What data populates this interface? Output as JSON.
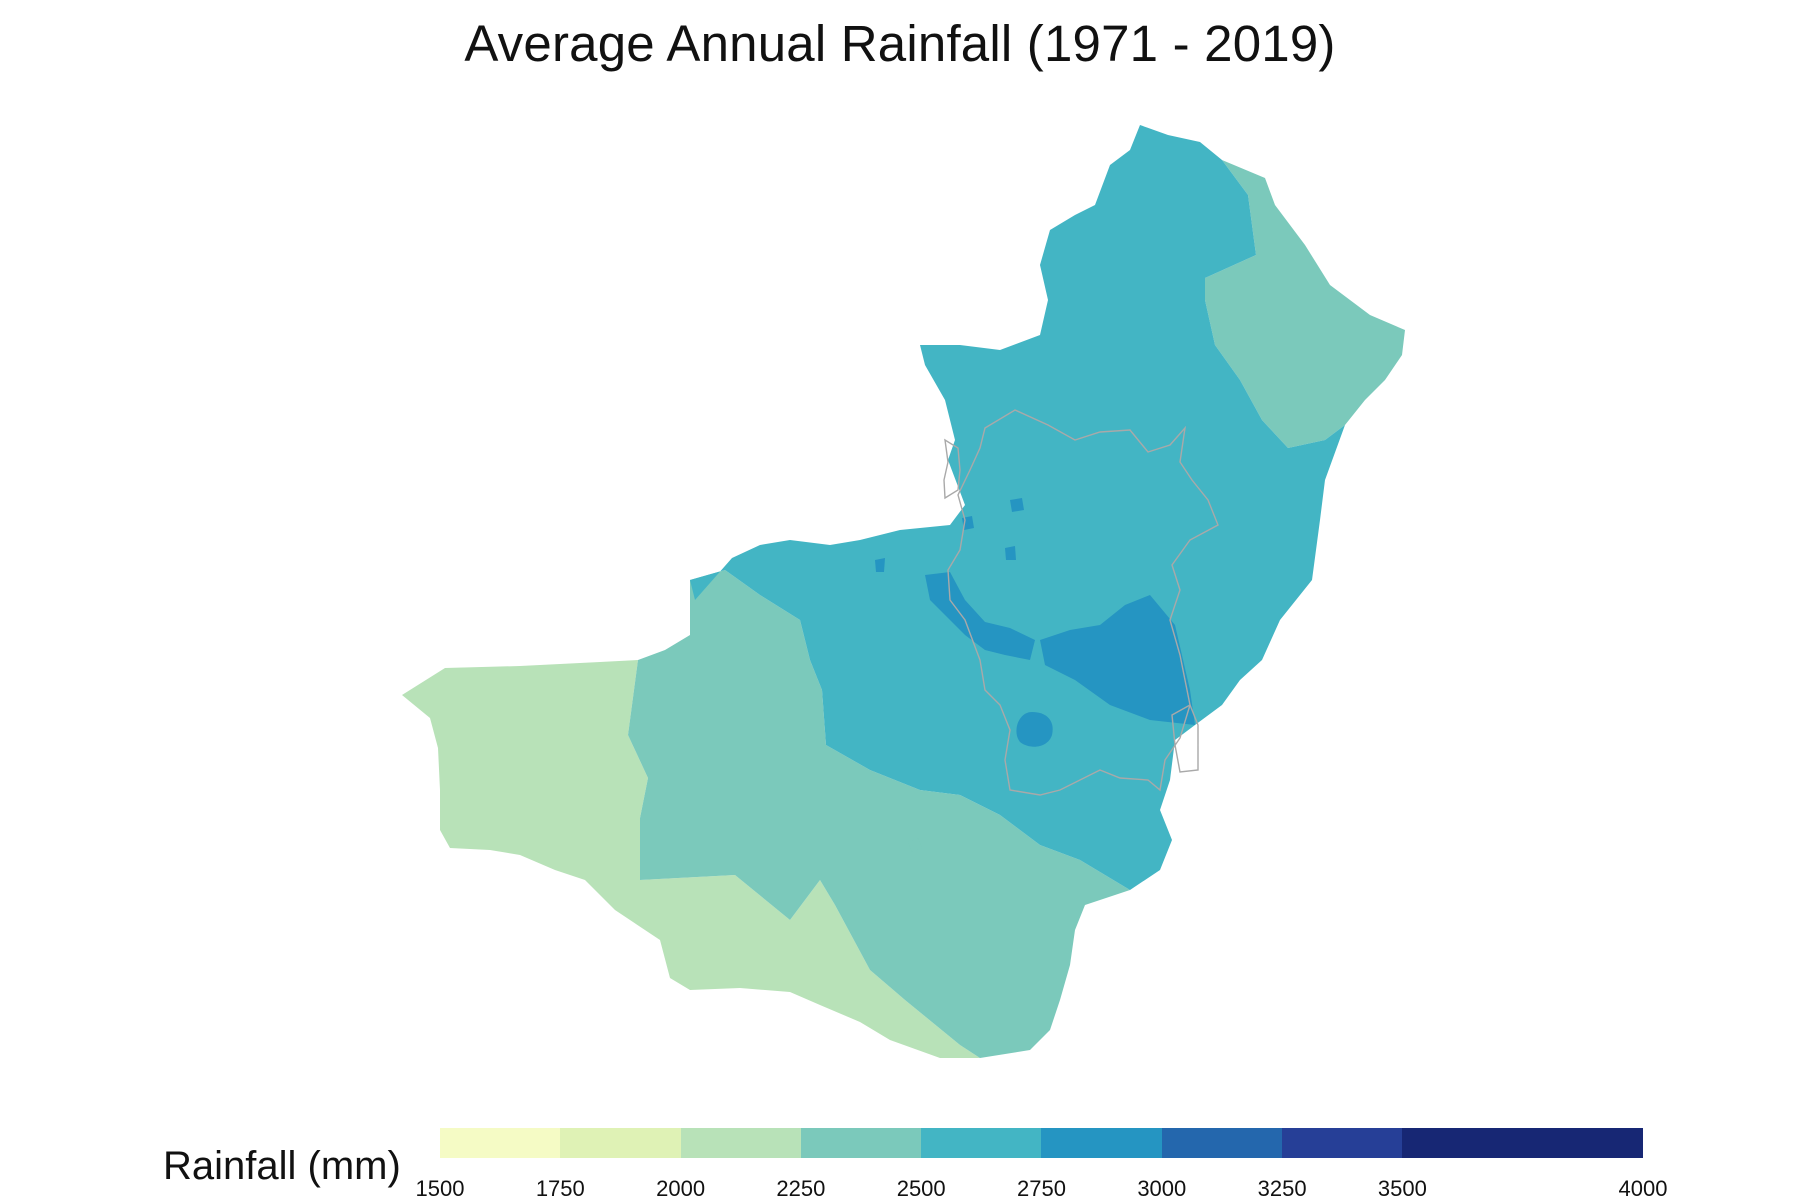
{
  "map": {
    "title": "Average Annual Rainfall (1971 - 2019)",
    "colors": {
      "lightest": "#b8e2b8",
      "light": "#7bc9bb",
      "mid": "#43b5c4",
      "dark": "#2595c2",
      "boundary": "#a9a9a9"
    }
  },
  "legend": {
    "title": "Rainfall (mm)",
    "bins": [
      {
        "from": 1500,
        "to": 1750,
        "color": "#f5fbc5"
      },
      {
        "from": 1750,
        "to": 2000,
        "color": "#dff2b5"
      },
      {
        "from": 2000,
        "to": 2250,
        "color": "#b8e2b8"
      },
      {
        "from": 2250,
        "to": 2500,
        "color": "#7bc9bb"
      },
      {
        "from": 2500,
        "to": 2750,
        "color": "#43b5c4"
      },
      {
        "from": 2750,
        "to": 3000,
        "color": "#2595c2"
      },
      {
        "from": 3000,
        "to": 3250,
        "color": "#2467ad"
      },
      {
        "from": 3250,
        "to": 3500,
        "color": "#263f97"
      },
      {
        "from": 3500,
        "to": 4000,
        "color": "#172774"
      }
    ],
    "ticks": [
      "1500",
      "1750",
      "2000",
      "2250",
      "2500",
      "2750",
      "3000",
      "3250",
      "3500",
      "4000"
    ]
  }
}
